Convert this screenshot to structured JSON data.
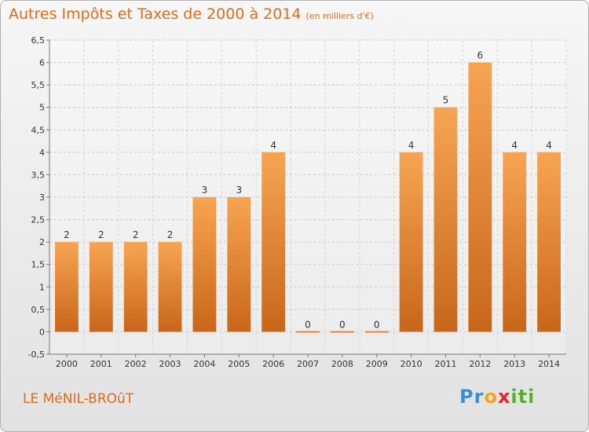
{
  "header": {
    "title": "Autres Impôts et Taxes de 2000 à 2014",
    "unit": "(en milliers d'€)"
  },
  "footer": {
    "commune": "LE MéNIL-BROûT"
  },
  "logo": {
    "parts": [
      "Pr",
      "o",
      "x",
      "iti"
    ]
  },
  "colors": {
    "bar_light": "#f7a552",
    "bar_dark": "#c8661a",
    "title": "#e06a1b",
    "axis_text": "#333333"
  },
  "chart_data": {
    "type": "bar",
    "title": "Autres Impôts et Taxes de 2000 à 2014",
    "subtitle": "(en milliers d'€)",
    "categories": [
      "2000",
      "2001",
      "2002",
      "2003",
      "2004",
      "2005",
      "2006",
      "2007",
      "2008",
      "2009",
      "2010",
      "2011",
      "2012",
      "2013",
      "2014"
    ],
    "values": [
      2,
      2,
      2,
      2,
      3,
      3,
      4,
      0,
      0,
      0,
      4,
      5,
      6,
      4,
      4
    ],
    "ylim": [
      -0.5,
      6.5
    ],
    "yticks": [
      -0.5,
      0,
      0.5,
      1,
      1.5,
      2,
      2.5,
      3,
      3.5,
      4,
      4.5,
      5,
      5.5,
      6,
      6.5
    ],
    "ytick_labels": [
      "-0,5",
      "0",
      "0,5",
      "1",
      "1,5",
      "2",
      "2,5",
      "3",
      "3,5",
      "4",
      "4,5",
      "5",
      "5,5",
      "6",
      "6,5"
    ],
    "grid": true,
    "xlabel": "",
    "ylabel": ""
  }
}
